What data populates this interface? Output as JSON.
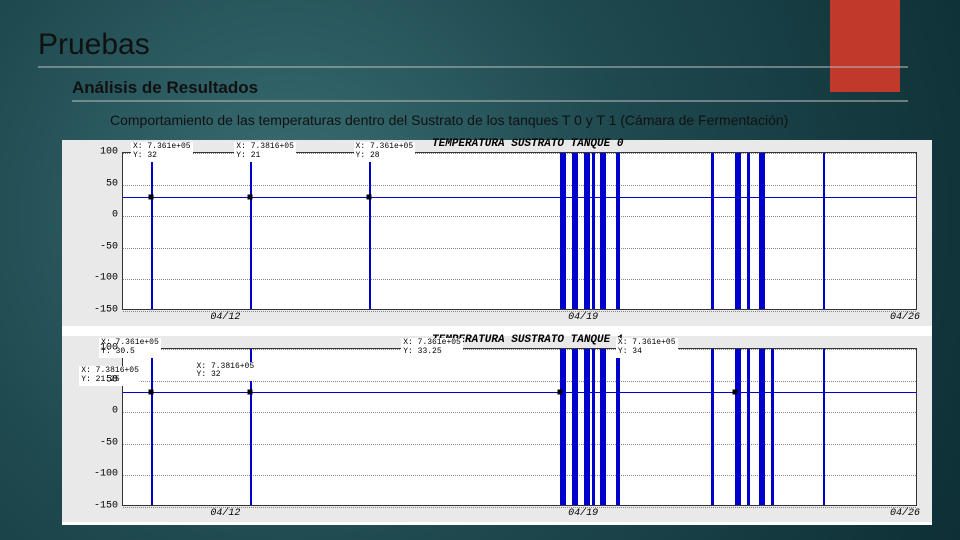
{
  "heading": "Pruebas",
  "subhead": "Análisis de Resultados",
  "description": "Comportamiento de las temperaturas dentro del Sustrato de los tanques T 0 y T 1 (Cámara de Fermentación)",
  "accent_color": "#c0392b",
  "bg_gradient": [
    "#3a6f74",
    "#1f4a50",
    "#0d2f35"
  ],
  "chart": {
    "panel_bg": "#e9e9e9",
    "plot_bg": "#ffffff",
    "line_color": "#0000cc",
    "grid_color": "#888888",
    "font": "Courier New",
    "panels": [
      {
        "title": "TEMPERATURA SUSTRATO TANQUE  0",
        "ylim": [
          -150,
          100
        ],
        "yticks": [
          100,
          50,
          0,
          -50,
          -100,
          -150
        ],
        "xticks": [
          "04/12",
          "04/19",
          "04/26"
        ],
        "xtick_pos": [
          0.13,
          0.58,
          0.985
        ],
        "baseline_y": 30,
        "spikes": [
          {
            "x": 0.035,
            "w": 2
          },
          {
            "x": 0.16,
            "w": 2
          },
          {
            "x": 0.31,
            "w": 2
          },
          {
            "x": 0.55,
            "w": 6
          },
          {
            "x": 0.565,
            "w": 6
          },
          {
            "x": 0.58,
            "w": 6
          },
          {
            "x": 0.59,
            "w": 3
          },
          {
            "x": 0.6,
            "w": 6
          },
          {
            "x": 0.62,
            "w": 4
          },
          {
            "x": 0.74,
            "w": 3
          },
          {
            "x": 0.77,
            "w": 6
          },
          {
            "x": 0.785,
            "w": 3
          },
          {
            "x": 0.8,
            "w": 6
          },
          {
            "x": 0.88,
            "w": 2
          }
        ],
        "markers": [
          {
            "x": 0.035,
            "label_x": 0.01,
            "label_y": -0.07,
            "text": "X: 7.361e+05\nY: 32"
          },
          {
            "x": 0.16,
            "label_x": 0.14,
            "label_y": -0.07,
            "text": "X: 7.3816+05\nY: 21"
          },
          {
            "x": 0.31,
            "label_x": 0.29,
            "label_y": -0.07,
            "text": "X: 7.361e+05\nY: 28"
          }
        ]
      },
      {
        "title": "TEMPERATURA SUSTRATO TANQUE  1",
        "ylim": [
          -150,
          100
        ],
        "yticks": [
          100,
          50,
          0,
          -50,
          -100,
          -150
        ],
        "xticks": [
          "04/12",
          "04/19",
          "04/26"
        ],
        "xtick_pos": [
          0.13,
          0.58,
          0.985
        ],
        "baseline_y": 32,
        "spikes": [
          {
            "x": 0.035,
            "w": 2
          },
          {
            "x": 0.16,
            "w": 2
          },
          {
            "x": 0.55,
            "w": 6
          },
          {
            "x": 0.565,
            "w": 6
          },
          {
            "x": 0.58,
            "w": 6
          },
          {
            "x": 0.59,
            "w": 3
          },
          {
            "x": 0.6,
            "w": 6
          },
          {
            "x": 0.62,
            "w": 4
          },
          {
            "x": 0.74,
            "w": 3
          },
          {
            "x": 0.77,
            "w": 6
          },
          {
            "x": 0.785,
            "w": 3
          },
          {
            "x": 0.8,
            "w": 6
          },
          {
            "x": 0.815,
            "w": 3
          },
          {
            "x": 0.88,
            "w": 2
          }
        ],
        "markers": [
          {
            "x": 0.035,
            "label_x": -0.03,
            "label_y": -0.07,
            "text": "X: 7.361e+05\nY: 30.5"
          },
          {
            "x": 0.035,
            "label_x": -0.055,
            "label_y": 0.11,
            "text": "X: 7.3816+05\nY: 21.25"
          },
          {
            "x": 0.16,
            "label_x": 0.09,
            "label_y": 0.08,
            "text": "X: 7.3816+05\nY: 32"
          },
          {
            "x": 0.55,
            "label_x": 0.35,
            "label_y": -0.07,
            "text": "X: 7.361e+05\nY: 33.25"
          },
          {
            "x": 0.77,
            "label_x": 0.62,
            "label_y": -0.07,
            "text": "X: 7.361e+05\nY: 34"
          }
        ]
      }
    ]
  }
}
